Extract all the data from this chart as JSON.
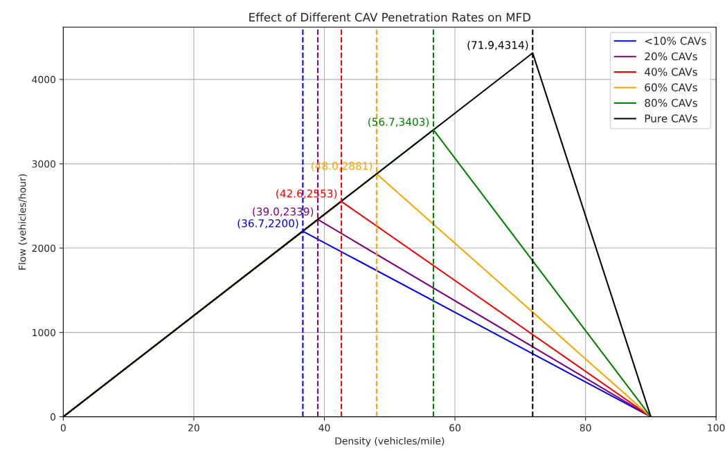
{
  "chart_data": {
    "type": "line",
    "title": "Effect of Different CAV Penetration Rates on MFD",
    "xlabel": "Density (vehicles/mile)",
    "ylabel": "Flow (vehicles/hour)",
    "xlim": [
      0,
      100
    ],
    "xticks": [
      0,
      20,
      40,
      60,
      80,
      100
    ],
    "ylim": [
      0,
      4620
    ],
    "yticks": [
      0,
      1000,
      2000,
      3000,
      4000
    ],
    "grid": true,
    "legend": "top right",
    "marker": "none",
    "line_style": "solid",
    "series": [
      {
        "name": "<10% CAVs",
        "color": "#0000ff",
        "x": [
          0,
          36.7,
          90
        ],
        "values": [
          0,
          2200,
          0
        ]
      },
      {
        "name": "20% CAVs",
        "color": "#800080",
        "x": [
          0,
          39.0,
          90
        ],
        "values": [
          0,
          2339,
          0
        ]
      },
      {
        "name": "40% CAVs",
        "color": "#ff0000",
        "x": [
          0,
          42.6,
          90
        ],
        "values": [
          0,
          2553,
          0
        ]
      },
      {
        "name": "60% CAVs",
        "color": "#ffa500",
        "x": [
          0,
          48.0,
          90
        ],
        "values": [
          0,
          2881,
          0
        ]
      },
      {
        "name": "80% CAVs",
        "color": "#008000",
        "x": [
          0,
          56.7,
          90
        ],
        "values": [
          0,
          3403,
          0
        ]
      },
      {
        "name": "Pure CAVs",
        "color": "#000000",
        "x": [
          0,
          71.9,
          90
        ],
        "values": [
          0,
          4314,
          0
        ]
      }
    ],
    "ref_lines": [
      {
        "axis": "x",
        "value": 36.7,
        "label": null,
        "color": "#0000ff",
        "line_style": "dashed"
      },
      {
        "axis": "x",
        "value": 39.0,
        "label": null,
        "color": "#800080",
        "line_style": "dashed"
      },
      {
        "axis": "x",
        "value": 42.6,
        "label": null,
        "color": "#ff0000",
        "line_style": "dashed"
      },
      {
        "axis": "x",
        "value": 48.0,
        "label": null,
        "color": "#ffa500",
        "line_style": "dashed"
      },
      {
        "axis": "x",
        "value": 56.7,
        "label": null,
        "color": "#008000",
        "line_style": "dashed"
      },
      {
        "axis": "x",
        "value": 71.9,
        "label": null,
        "color": "#000000",
        "line_style": "dashed"
      }
    ],
    "annotations": [
      {
        "text": "(36.7,2200)",
        "x": 36.7,
        "y": 2200
      },
      {
        "text": "(39.0,2339)",
        "x": 39.0,
        "y": 2339
      },
      {
        "text": "(42.6,2553)",
        "x": 42.6,
        "y": 2553
      },
      {
        "text": "(48.0,2881)",
        "x": 48.0,
        "y": 2881
      },
      {
        "text": "(56.7,3403)",
        "x": 56.7,
        "y": 3403
      },
      {
        "text": "(71.9,4314)",
        "x": 71.9,
        "y": 4314
      }
    ]
  }
}
